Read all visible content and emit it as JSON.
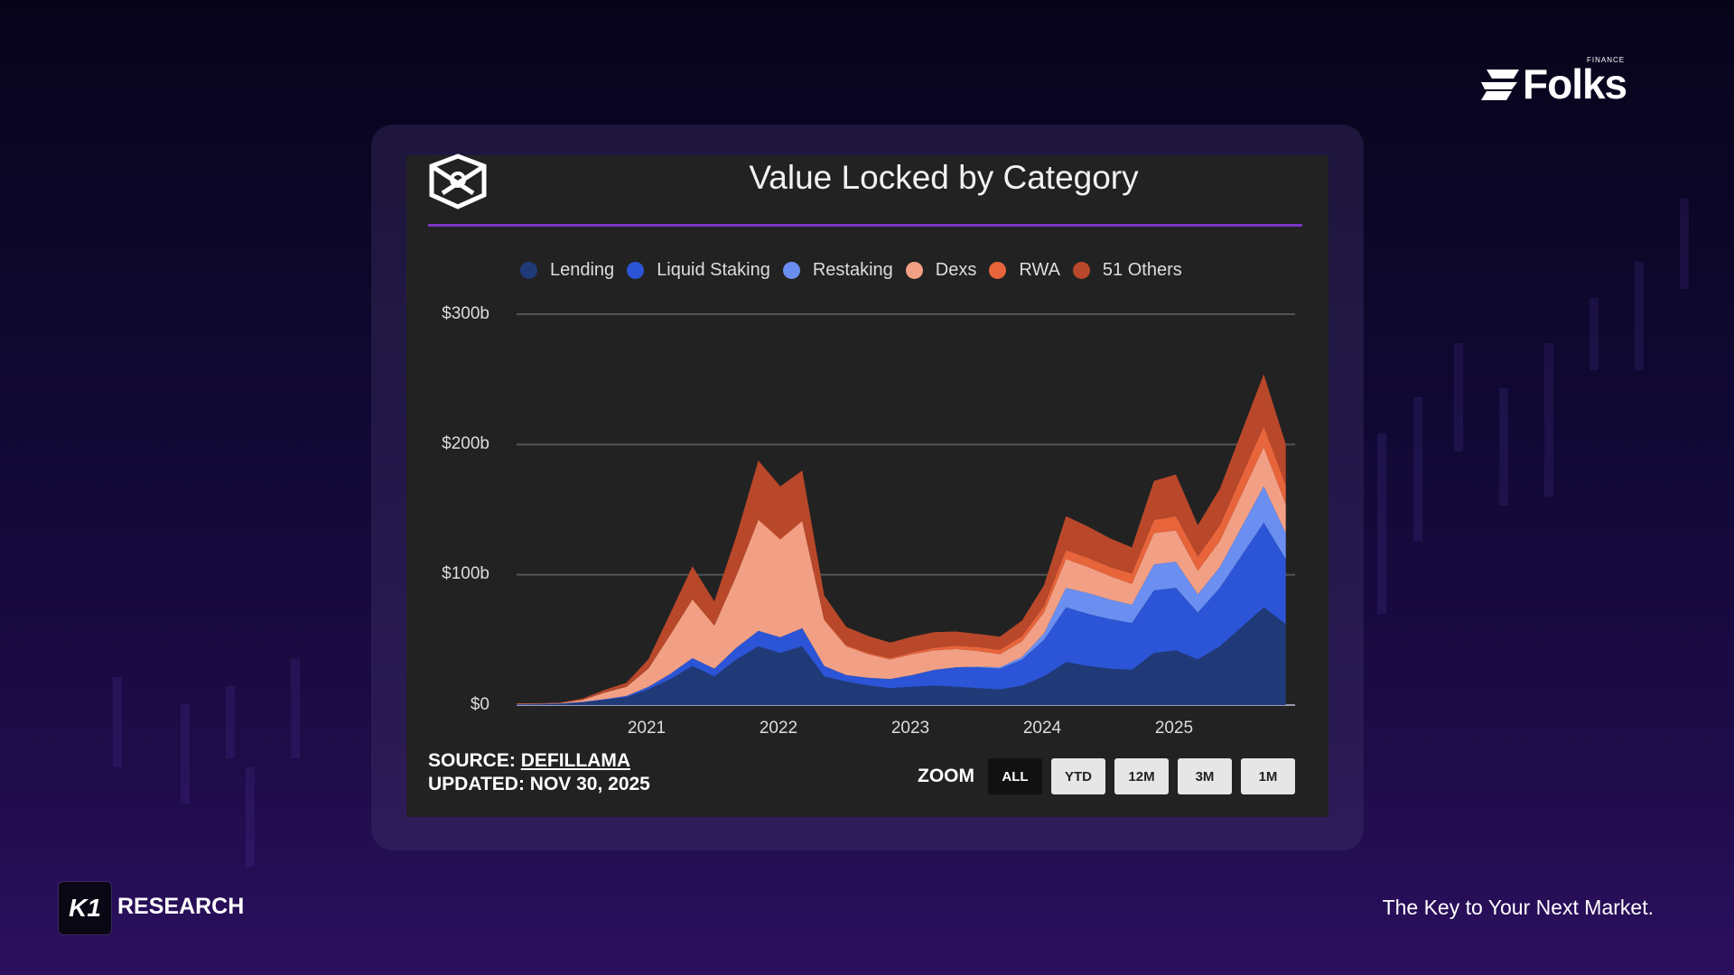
{
  "brand": {
    "folks_name": "Folks",
    "folks_sub": "FINANCE",
    "k1_mark": "K1",
    "research_label": "RESEARCH",
    "tagline": "The Key to Your Next Market."
  },
  "source": {
    "prefix": "SOURCE: ",
    "link": "DEFILLAMA",
    "updated": "UPDATED: NOV 30, 2025"
  },
  "zoom": {
    "label": "ZOOM",
    "buttons": [
      "ALL",
      "YTD",
      "12M",
      "3M",
      "1M"
    ],
    "active": "ALL"
  },
  "chart_data": {
    "type": "area",
    "stacked": true,
    "title": "Value Locked by Category",
    "xlabel": "",
    "ylabel": "",
    "ylim": [
      0,
      300
    ],
    "y_ticks": [
      "$0",
      "$100b",
      "$200b",
      "$300b"
    ],
    "y_tick_values": [
      0,
      100,
      200,
      300
    ],
    "x_ticks": [
      "2021",
      "2022",
      "2023",
      "2024",
      "2025"
    ],
    "x_tick_values": [
      2021,
      2022,
      2023,
      2024,
      2025
    ],
    "legend_position": "top",
    "grid": true,
    "x": [
      "2020-01",
      "2020-03",
      "2020-05",
      "2020-07",
      "2020-09",
      "2020-11",
      "2021-01",
      "2021-03",
      "2021-05",
      "2021-07",
      "2021-09",
      "2021-11",
      "2022-01",
      "2022-03",
      "2022-05",
      "2022-07",
      "2022-09",
      "2022-11",
      "2023-01",
      "2023-03",
      "2023-05",
      "2023-07",
      "2023-09",
      "2023-11",
      "2024-01",
      "2024-03",
      "2024-05",
      "2024-07",
      "2024-09",
      "2024-11",
      "2025-01",
      "2025-03",
      "2025-05",
      "2025-07",
      "2025-09",
      "2025-11"
    ],
    "series": [
      {
        "name": "Lending",
        "color": "#203a78",
        "values": [
          0.5,
          0.6,
          0.9,
          2,
          4,
          6,
          12,
          20,
          30,
          22,
          35,
          45,
          40,
          45,
          22,
          18,
          15,
          13,
          14,
          15,
          14,
          13,
          12,
          15,
          22,
          33,
          30,
          28,
          27,
          40,
          42,
          35,
          45,
          60,
          75,
          62
        ]
      },
      {
        "name": "Liquid Staking",
        "color": "#2b55d6",
        "values": [
          0.2,
          0.2,
          0.3,
          0.4,
          0.5,
          1,
          2,
          4,
          6,
          6,
          9,
          12,
          12,
          14,
          8,
          5,
          6,
          7,
          9,
          12,
          15,
          16,
          16,
          20,
          28,
          42,
          40,
          38,
          36,
          48,
          48,
          36,
          45,
          55,
          65,
          50
        ]
      },
      {
        "name": "Restaking",
        "color": "#6b8ff0",
        "values": [
          0,
          0,
          0,
          0,
          0,
          0,
          0,
          0,
          0,
          0,
          0,
          0,
          0,
          0,
          0,
          0,
          0,
          0,
          0,
          0,
          0,
          0.5,
          1,
          2,
          5,
          15,
          16,
          15,
          14,
          20,
          20,
          14,
          16,
          22,
          28,
          20
        ]
      },
      {
        "name": "Dexs",
        "color": "#f2a085",
        "values": [
          0.3,
          0.3,
          0.4,
          1.5,
          5,
          7,
          14,
          30,
          45,
          33,
          55,
          85,
          75,
          82,
          35,
          22,
          18,
          15,
          16,
          15,
          14,
          12,
          10,
          12,
          16,
          22,
          20,
          18,
          16,
          24,
          24,
          18,
          20,
          25,
          30,
          22
        ]
      },
      {
        "name": "RWA",
        "color": "#e8643a",
        "values": [
          0,
          0,
          0,
          0.1,
          0.1,
          0.2,
          0.3,
          0.5,
          0.5,
          0.5,
          0.6,
          0.7,
          0.8,
          0.9,
          1,
          1,
          1,
          1,
          1.5,
          2,
          2.5,
          3,
          3.5,
          4,
          5,
          7,
          7,
          7,
          8,
          10,
          11,
          11,
          12,
          14,
          16,
          15
        ]
      },
      {
        "name": "51 Others",
        "color": "#b9472a",
        "values": [
          0.3,
          0.3,
          0.4,
          1,
          2,
          3,
          7,
          16,
          25,
          18,
          30,
          45,
          40,
          38,
          18,
          14,
          13,
          12,
          12,
          12,
          11,
          10,
          10,
          12,
          16,
          26,
          24,
          22,
          20,
          30,
          32,
          24,
          28,
          34,
          40,
          31
        ]
      }
    ]
  }
}
